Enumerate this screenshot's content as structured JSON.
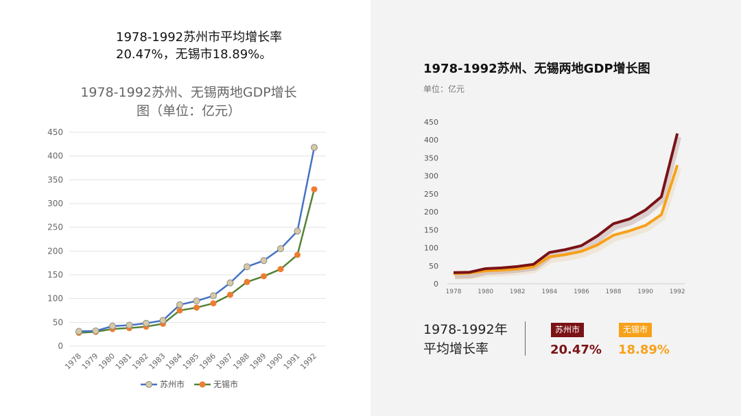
{
  "left": {
    "note": [
      "1978-1992苏州市平均增长率",
      "20.47%，无锡市18.89%。"
    ],
    "chart_title": [
      "1978-1992苏州、无锡两地GDP增长",
      "图（单位：亿元）"
    ]
  },
  "right": {
    "title": "1978-1992苏州、无锡两地GDP增长图",
    "unit": "单位：亿元",
    "summary_label": [
      "1978-1992年",
      "平均增长率"
    ],
    "badge_a": "苏州市",
    "badge_b": "无锡市",
    "rate_a": "20.47%",
    "rate_b": "18.89%"
  },
  "colors": {
    "left_suzhou": "#4472c4",
    "left_suzhou_marker": "#d6c9a4",
    "left_wuxi": "#548235",
    "left_wuxi_marker": "#ed7d31",
    "right_suzhou": "#7a1216",
    "right_wuxi": "#f7a11a"
  },
  "chart_data": [
    {
      "type": "line",
      "title": "1978-1992苏州、无锡两地GDP增长图（单位：亿元）",
      "categories": [
        "1978",
        "1979",
        "1980",
        "1981",
        "1982",
        "1983",
        "1984",
        "1985",
        "1986",
        "1987",
        "1988",
        "1989",
        "1990",
        "1991",
        "1992"
      ],
      "series": [
        {
          "name": "苏州市",
          "values": [
            31,
            32,
            42,
            44,
            48,
            54,
            87,
            95,
            106,
            133,
            167,
            180,
            205,
            242,
            418
          ]
        },
        {
          "name": "无锡市",
          "values": [
            28,
            30,
            36,
            38,
            41,
            47,
            75,
            81,
            90,
            108,
            135,
            147,
            162,
            192,
            330
          ]
        }
      ],
      "ylim": [
        0,
        450
      ],
      "yticks": [
        0,
        50,
        100,
        150,
        200,
        250,
        300,
        350,
        400,
        450
      ],
      "grid": true,
      "legend": "bottom"
    },
    {
      "type": "line",
      "title": "1978-1992苏州、无锡两地GDP增长图",
      "categories": [
        "1978",
        "1979",
        "1980",
        "1981",
        "1982",
        "1983",
        "1984",
        "1985",
        "1986",
        "1987",
        "1988",
        "1989",
        "1990",
        "1991",
        "1992"
      ],
      "xticks": [
        "1978",
        "1980",
        "1982",
        "1984",
        "1986",
        "1988",
        "1990",
        "1992"
      ],
      "series": [
        {
          "name": "苏州市",
          "values": [
            31,
            32,
            42,
            44,
            48,
            54,
            87,
            95,
            106,
            133,
            167,
            180,
            205,
            242,
            418
          ]
        },
        {
          "name": "无锡市",
          "values": [
            28,
            30,
            36,
            38,
            41,
            47,
            75,
            81,
            90,
            108,
            135,
            147,
            162,
            192,
            330
          ]
        }
      ],
      "ylim": [
        0,
        450
      ],
      "yticks": [
        0,
        50,
        100,
        150,
        200,
        250,
        300,
        350,
        400,
        450
      ],
      "grid": false
    }
  ]
}
